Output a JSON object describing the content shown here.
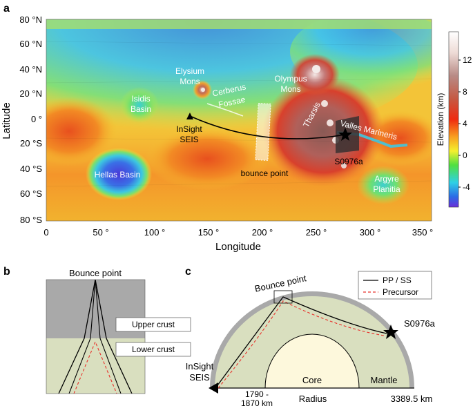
{
  "panels": {
    "a": {
      "letter": "a",
      "ylabel": "Latitude",
      "xlabel": "Longitude",
      "lat_ticks": [
        "80 °N",
        "60 °N",
        "40 °N",
        "20 °N",
        "0 °",
        "20 °S",
        "40 °S",
        "60 °S",
        "80 °S"
      ],
      "lon_ticks": [
        "0",
        "50 °",
        "100 °",
        "150 °",
        "200 °",
        "250 °",
        "300 °",
        "350 °"
      ],
      "features": {
        "elysium": [
          "Elysium",
          "Mons"
        ],
        "cerberus": [
          "Cerberus",
          "Fossae"
        ],
        "olympus": [
          "Olympus",
          "Mons"
        ],
        "isidis": [
          "Isidis",
          "Basin"
        ],
        "tharsis": "Tharsis",
        "valles": "Valles Marineris",
        "hellas": "Hellas Basin",
        "argyre": [
          "Argyre",
          "Planitia"
        ],
        "insight": [
          "InSight",
          "SEIS"
        ],
        "bounce": "bounce point",
        "event": "S0976a"
      },
      "colorbar": {
        "label": "Elevation (km)",
        "ticks": [
          "12",
          "8",
          "4",
          "0",
          "-4"
        ]
      }
    },
    "b": {
      "letter": "b",
      "title": "Bounce point",
      "upper": "Upper crust",
      "lower": "Lower crust"
    },
    "c": {
      "letter": "c",
      "bounce": "Bounce point",
      "legend": [
        "PP / SS",
        "Precursor"
      ],
      "event": "S0976a",
      "insight": [
        "InSight",
        "SEIS"
      ],
      "core": "Core",
      "mantle": "Mantle",
      "radius": "Radius",
      "core_radius": [
        "1790 -",
        "1870 km"
      ],
      "outer_radius": "3389.5 km"
    }
  },
  "colors": {
    "ray": "#000000",
    "precursor": "#e8302a",
    "mantle": "#d9dfbf",
    "crust": "#a9a9a9",
    "core": "#fdf8dc"
  }
}
